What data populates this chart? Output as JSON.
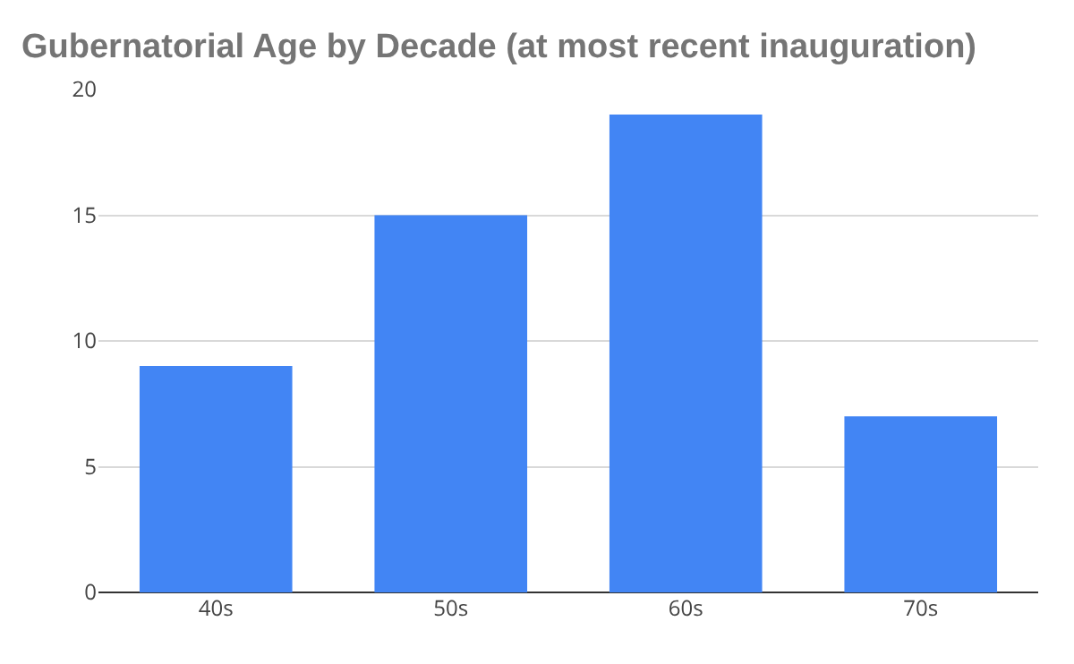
{
  "chart_data": {
    "type": "bar",
    "title": "Gubernatorial Age by Decade (at most recent inauguration)",
    "categories": [
      "40s",
      "50s",
      "60s",
      "70s"
    ],
    "values": [
      9,
      15,
      19,
      7
    ],
    "color": "#4285f4",
    "ylim": [
      0,
      20
    ],
    "yticks": [
      0,
      5,
      10,
      15,
      20
    ],
    "grid": "y"
  }
}
